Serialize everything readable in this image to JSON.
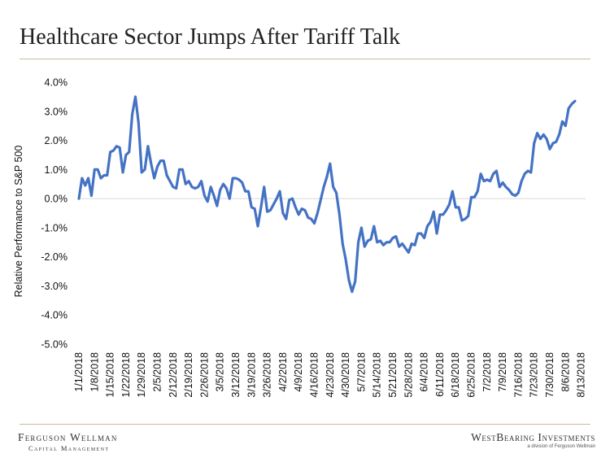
{
  "header": {
    "title": "Healthcare Sector Jumps After Tariff Talk"
  },
  "footer": {
    "left_name": "Ferguson Wellman",
    "left_sub": "Capital Management",
    "right_name": "WestBearing Investments",
    "right_sub": "a division of Ferguson Wellman"
  },
  "colors": {
    "line": "#4472c4",
    "rule": "#c9b9a3",
    "zero_line": "#d9d9d9"
  },
  "chart_data": {
    "type": "line",
    "title": "Healthcare Sector Jumps After Tariff Talk",
    "ylabel": "Relative Performance to S&P 500",
    "xlabel": "",
    "ylim": [
      -5.0,
      4.0
    ],
    "yticks": [
      "4.0%",
      "3.0%",
      "2.0%",
      "1.0%",
      "0.0%",
      "-1.0%",
      "-2.0%",
      "-3.0%",
      "-4.0%",
      "-5.0%"
    ],
    "x_tick_labels": [
      "1/1/2018",
      "1/8/2018",
      "1/15/2018",
      "1/22/2018",
      "1/29/2018",
      "2/5/2018",
      "2/12/2018",
      "2/19/2018",
      "2/26/2018",
      "3/5/2018",
      "3/12/2018",
      "3/19/2018",
      "3/26/2018",
      "4/2/2018",
      "4/9/2018",
      "4/16/2018",
      "4/23/2018",
      "4/30/2018",
      "5/7/2018",
      "5/14/2018",
      "5/21/2018",
      "5/28/2018",
      "6/4/2018",
      "6/11/2018",
      "6/18/2018",
      "6/25/2018",
      "7/2/2018",
      "7/9/2018",
      "7/16/2018",
      "7/23/2018",
      "7/30/2018",
      "8/6/2018",
      "8/13/2018"
    ],
    "grid": false,
    "series": [
      {
        "x_start_tick": 0,
        "points_per_tick": 5,
        "values": [
          0.0,
          0.7,
          0.45,
          0.7,
          0.1,
          1.0,
          1.0,
          0.7,
          0.8,
          0.8,
          1.6,
          1.65,
          1.8,
          1.75,
          0.9,
          1.5,
          1.6,
          2.9,
          3.5,
          2.6,
          0.9,
          1.0,
          1.8,
          1.2,
          0.7,
          1.1,
          1.3,
          1.3,
          0.8,
          0.6,
          0.4,
          0.35,
          1.0,
          1.0,
          0.5,
          0.6,
          0.4,
          0.35,
          0.4,
          0.6,
          0.1,
          -0.1,
          0.4,
          0.1,
          -0.25,
          0.3,
          0.5,
          0.35,
          0.0,
          0.7,
          0.7,
          0.65,
          0.55,
          0.25,
          0.25,
          -0.3,
          -0.35,
          -0.95,
          -0.3,
          0.4,
          -0.45,
          -0.4,
          -0.2,
          0.0,
          0.25,
          -0.5,
          -0.7,
          -0.05,
          0.0,
          -0.3,
          -0.55,
          -0.35,
          -0.4,
          -0.65,
          -0.7,
          -0.85,
          -0.5,
          -0.05,
          0.4,
          0.75,
          1.2,
          0.4,
          0.2,
          -0.55,
          -1.55,
          -2.1,
          -2.8,
          -3.2,
          -2.85,
          -1.5,
          -1.0,
          -1.65,
          -1.45,
          -1.4,
          -0.95,
          -1.5,
          -1.45,
          -1.6,
          -1.5,
          -1.5,
          -1.35,
          -1.3,
          -1.65,
          -1.55,
          -1.7,
          -1.85,
          -1.55,
          -1.6,
          -1.2,
          -1.2,
          -1.35,
          -0.95,
          -0.8,
          -0.45,
          -1.2,
          -0.55,
          -0.55,
          -0.4,
          -0.2,
          0.25,
          -0.3,
          -0.3,
          -0.75,
          -0.7,
          -0.6,
          0.05,
          0.05,
          0.25,
          0.85,
          0.6,
          0.65,
          0.6,
          0.85,
          0.95,
          0.4,
          0.55,
          0.4,
          0.3,
          0.15,
          0.1,
          0.2,
          0.6,
          0.85,
          0.95,
          0.9,
          1.9,
          2.25,
          2.05,
          2.2,
          2.05,
          1.7,
          1.9,
          1.95,
          2.2,
          2.65,
          2.5,
          3.1,
          3.25,
          3.35
        ]
      }
    ]
  }
}
